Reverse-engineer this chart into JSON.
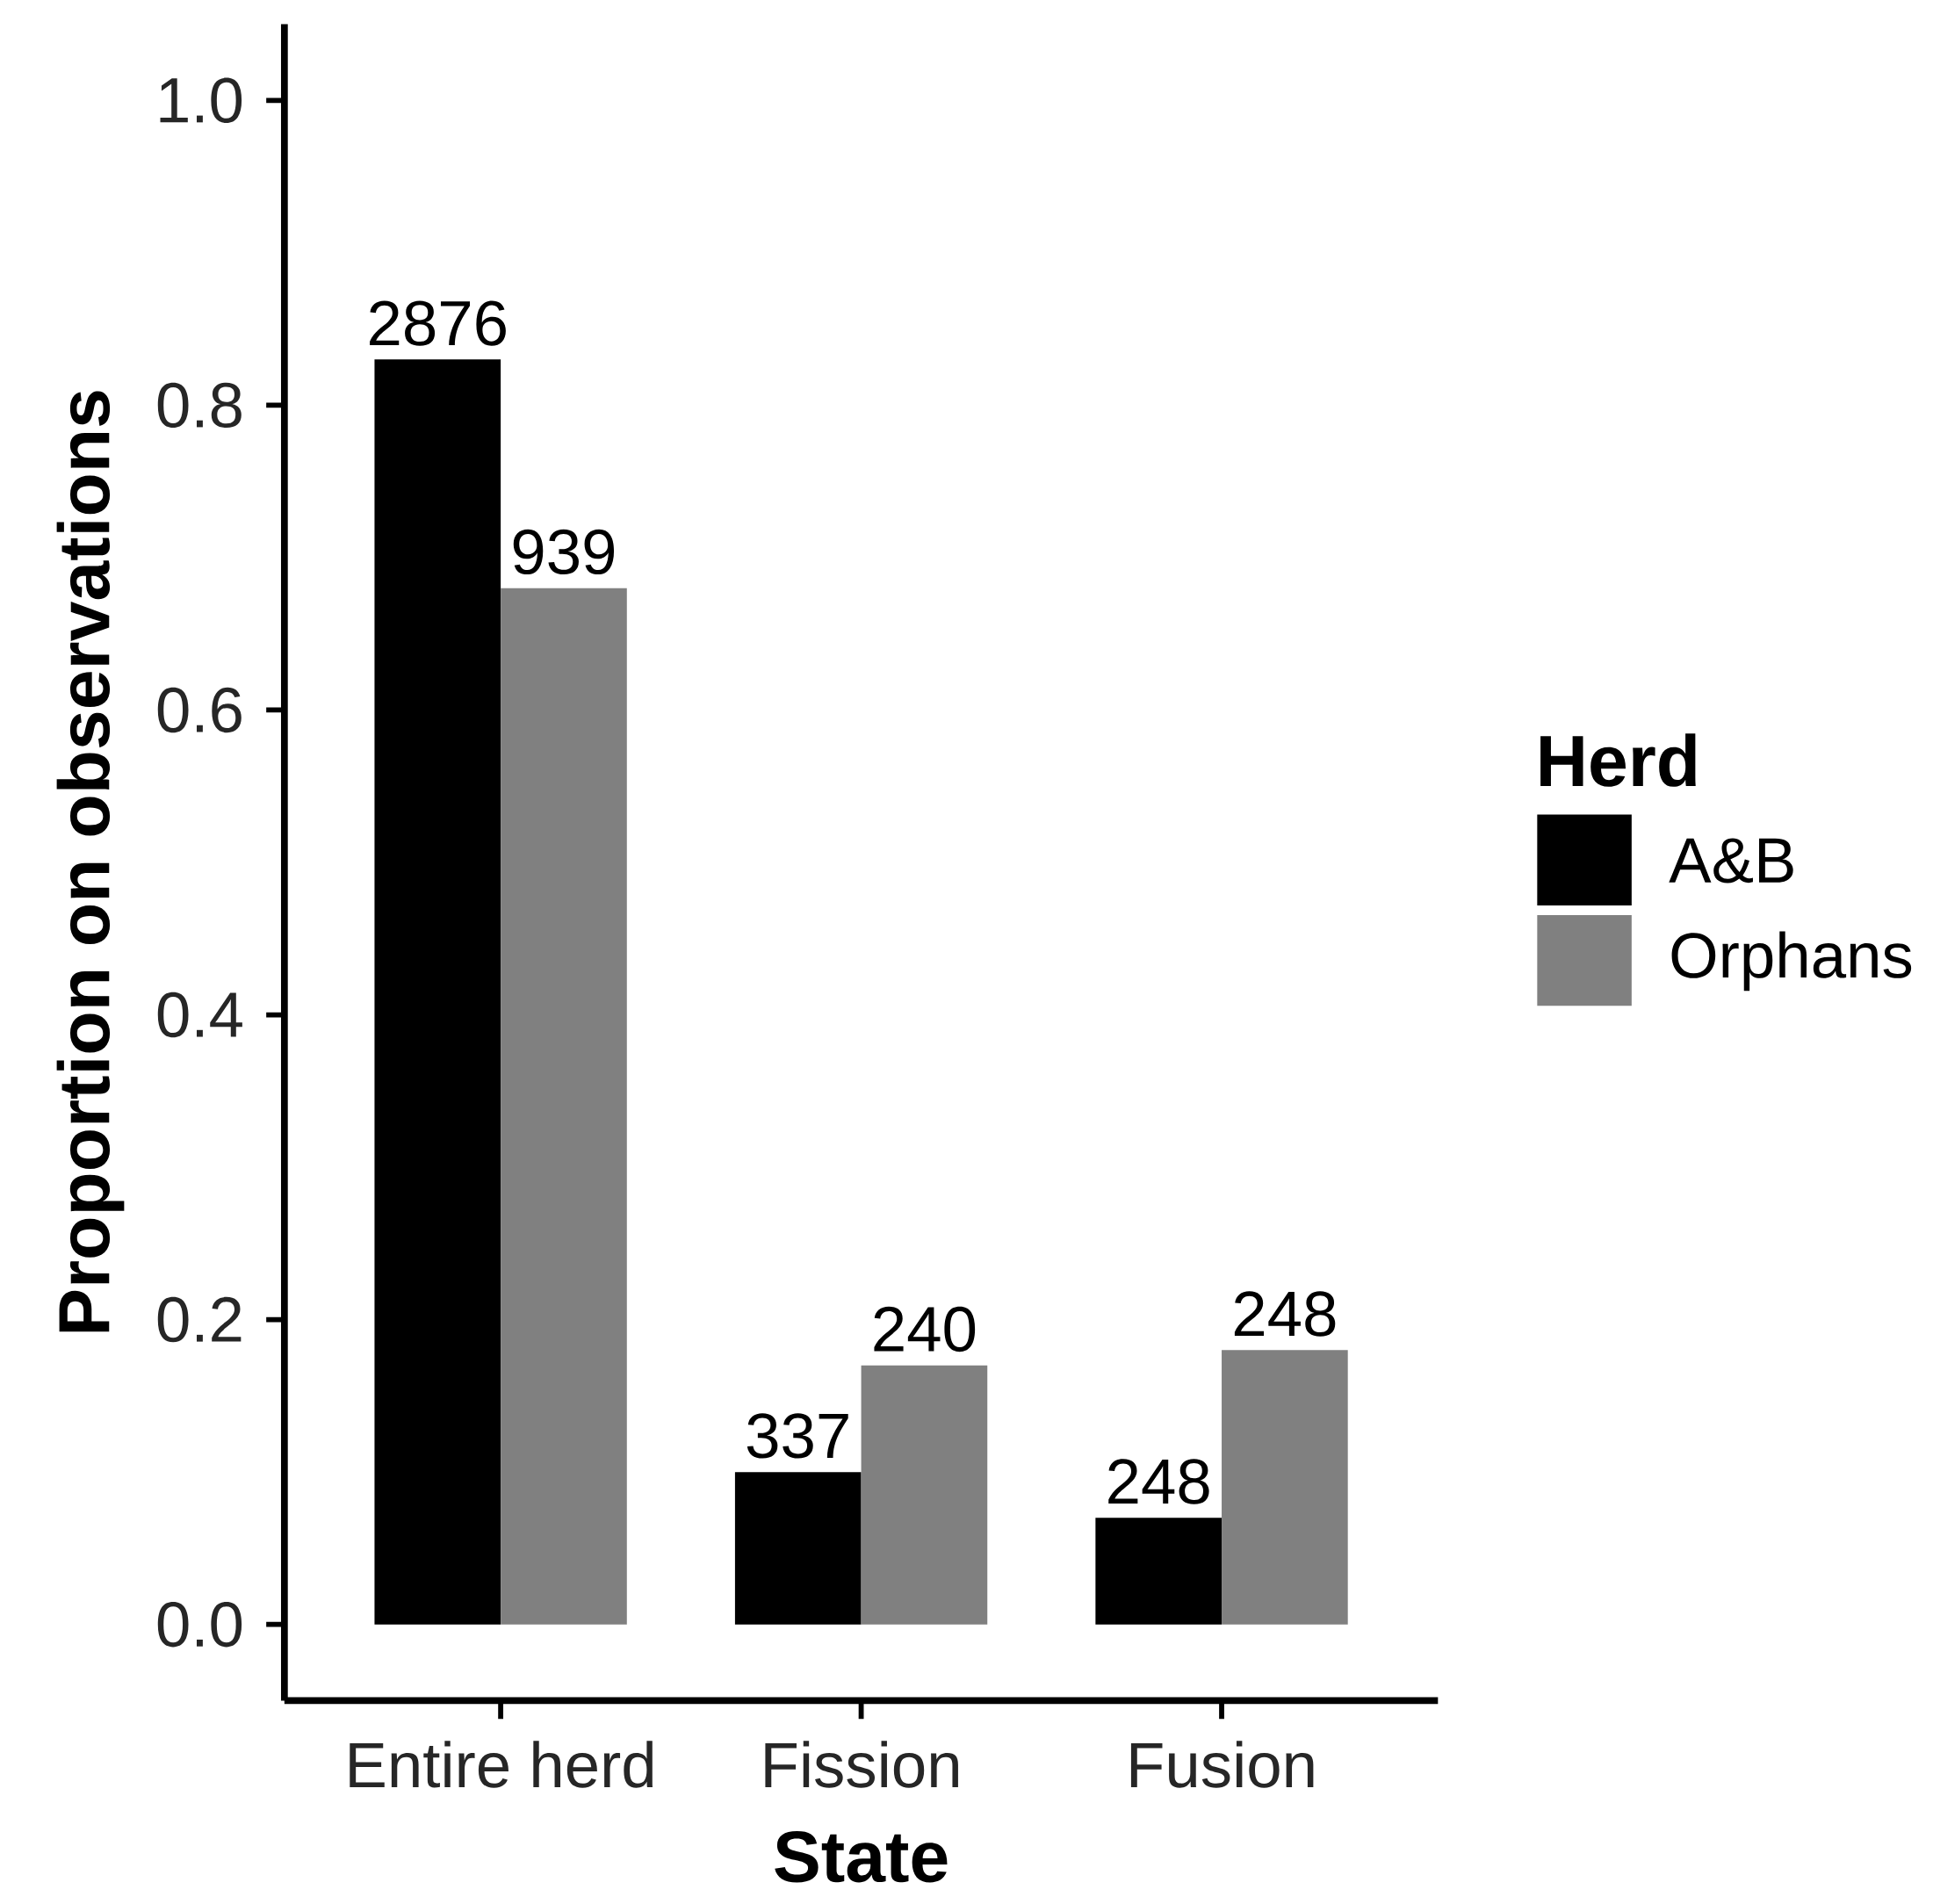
{
  "chart_data": {
    "type": "bar",
    "xlabel": "**State**",
    "ylabel": "**Proportion on observations**",
    "legend_title": "**Herd**",
    "legend": "right",
    "categories": [
      "Entire herd",
      "Fission",
      "Fusion"
    ],
    "series": [
      {
        "name": "A&B",
        "color": "#000000",
        "values": [
          0.83,
          0.1,
          0.07
        ]
      },
      {
        "name": "Orphans",
        "color": "#808080",
        "values": [
          0.68,
          0.17,
          0.18
        ]
      }
    ],
    "annotations": [
      {
        "text": "2876",
        "x": "Entire herd",
        "y": 0.83
      },
      {
        "text": "337",
        "x": "Fission",
        "y": 0.1
      },
      {
        "text": "248",
        "x": "Fusion",
        "y": 0.07
      },
      {
        "text": "939",
        "x": "Entire herd",
        "y": 0.68
      },
      {
        "text": "240",
        "x": "Fission",
        "y": 0.17
      },
      {
        "text": "248",
        "x": "Fusion",
        "y": 0.18
      }
    ],
    "ylim": [
      -0.05,
      1.05
    ],
    "yticks": [
      {
        "value": 0,
        "label": "0.0"
      },
      {
        "value": 0.2,
        "label": "0.2"
      },
      {
        "value": 0.4,
        "label": "0.4"
      },
      {
        "value": 0.6,
        "label": "0.6"
      },
      {
        "value": 0.8,
        "label": "0.8"
      },
      {
        "value": 1,
        "label": "1.0"
      }
    ],
    "grid": false
  }
}
